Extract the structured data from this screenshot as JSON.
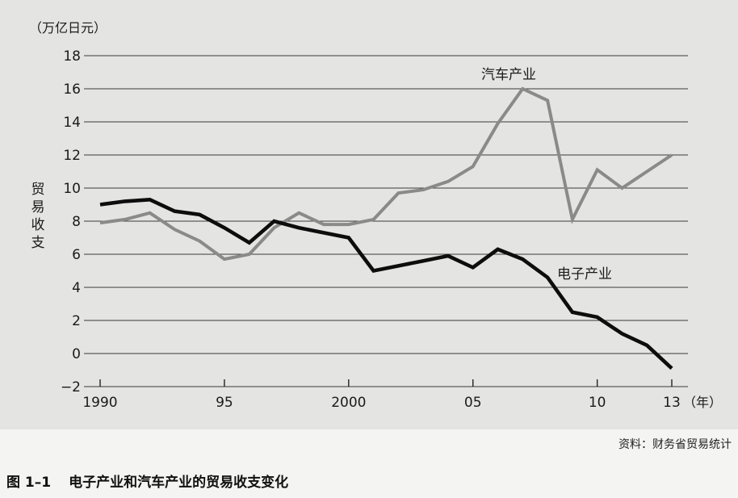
{
  "figure": {
    "number": "图 1–1",
    "title": "电子产业和汽车产业的贸易收支变化",
    "source": "资料：财务省贸易统计"
  },
  "chart_data": {
    "type": "line",
    "ylabel": "贸易收支",
    "yunit": "（万亿日元）",
    "xunit": "（年）",
    "ylim": [
      -2,
      18
    ],
    "yticks": [
      -2,
      0,
      2,
      4,
      6,
      8,
      10,
      12,
      14,
      16,
      18
    ],
    "ytick_labels": [
      "−2",
      "0",
      "2",
      "4",
      "6",
      "8",
      "10",
      "12",
      "14",
      "16",
      "18"
    ],
    "xlim": [
      1990,
      2013
    ],
    "xticks": [
      1990,
      1995,
      2000,
      2005,
      2010,
      2013
    ],
    "xtick_labels": [
      "1990",
      "95",
      "2000",
      "05",
      "10",
      "13"
    ],
    "grid": "horizontal",
    "x": [
      1990,
      1991,
      1992,
      1993,
      1994,
      1995,
      1996,
      1997,
      1998,
      1999,
      2000,
      2001,
      2002,
      2003,
      2004,
      2005,
      2006,
      2007,
      2008,
      2009,
      2010,
      2011,
      2012,
      2013
    ],
    "series": [
      {
        "name": "汽车产业",
        "color": "#8a8a8a",
        "values": [
          7.9,
          8.1,
          8.5,
          7.5,
          6.8,
          5.7,
          6.0,
          7.6,
          8.5,
          7.8,
          7.8,
          8.1,
          9.7,
          9.9,
          10.4,
          11.3,
          13.9,
          16.0,
          15.3,
          8.1,
          11.1,
          10.0,
          11.0,
          12.0
        ]
      },
      {
        "name": "电子产业",
        "color": "#0d0d0d",
        "values": [
          9.0,
          9.2,
          9.3,
          8.6,
          8.4,
          7.6,
          6.7,
          8.0,
          7.6,
          7.3,
          7.0,
          5.0,
          5.3,
          5.6,
          5.9,
          5.2,
          6.3,
          5.7,
          4.6,
          2.5,
          2.2,
          1.2,
          0.5,
          -0.9
        ]
      }
    ]
  }
}
